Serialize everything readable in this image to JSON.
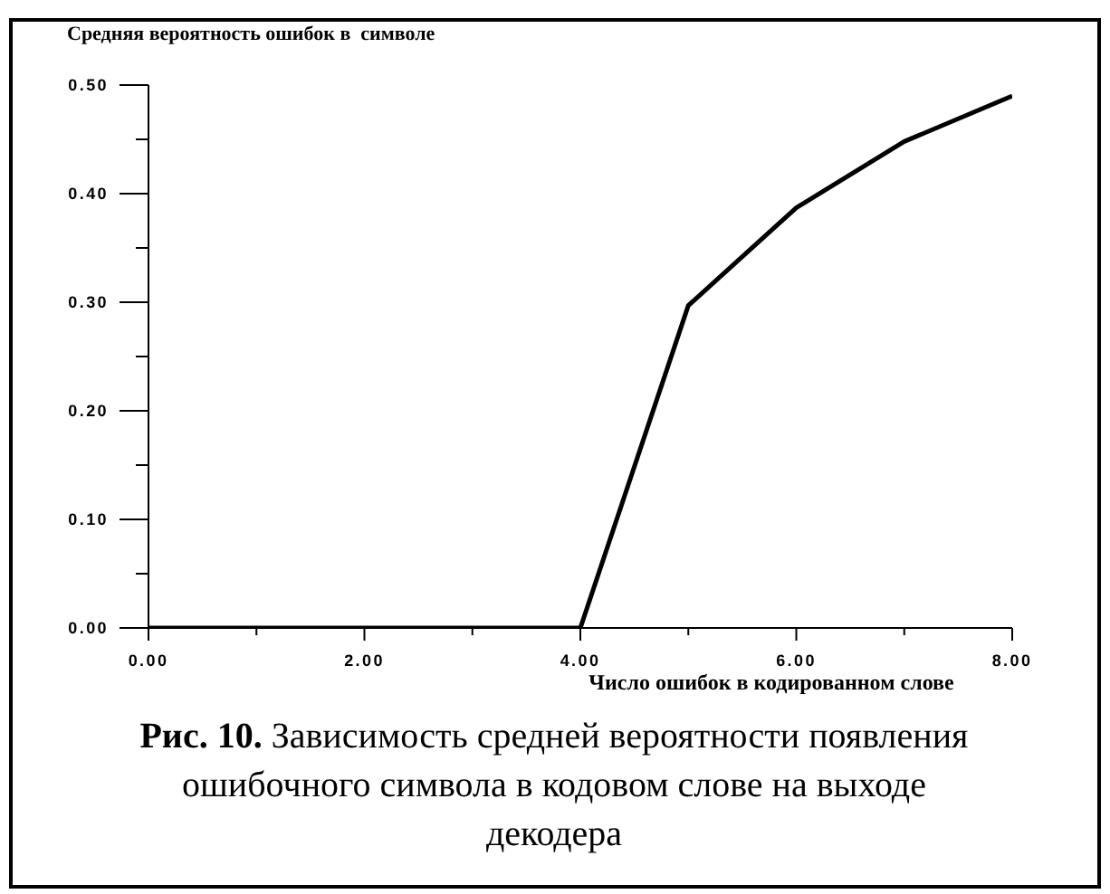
{
  "chart_data": {
    "type": "line",
    "xlabel": "Число ошибок в кодированном слове",
    "ylabel": "Средняя вероятность ошибок в  символе",
    "annotations": [
      "Рис. 10.",
      "Зависимость средней вероятности появления ошибочного символа в кодовом слове на выходе декодера"
    ],
    "x": [
      0,
      1,
      2,
      3,
      4,
      5,
      6,
      7,
      8
    ],
    "series": [
      {
        "color": "#000000",
        "values": [
          0,
          0,
          0,
          0,
          0,
          0.297,
          0.387,
          0.448,
          0.49
        ]
      }
    ],
    "xlim": [
      0,
      8
    ],
    "xticks": [
      {
        "value": 0,
        "label": "0.00"
      },
      {
        "value": 1,
        "label": null
      },
      {
        "value": 2,
        "label": "2.00"
      },
      {
        "value": 3,
        "label": null
      },
      {
        "value": 4,
        "label": "4.00"
      },
      {
        "value": 5,
        "label": null
      },
      {
        "value": 6,
        "label": "6.00"
      },
      {
        "value": 7,
        "label": null
      },
      {
        "value": 8,
        "label": "8.00"
      }
    ],
    "ylim": [
      0,
      0.5
    ],
    "yticks": [
      {
        "value": 0,
        "label": "0.00"
      },
      {
        "value": 0.05,
        "label": null
      },
      {
        "value": 0.1,
        "label": "0.10"
      },
      {
        "value": 0.15,
        "label": null
      },
      {
        "value": 0.2,
        "label": "0.20"
      },
      {
        "value": 0.25,
        "label": null
      },
      {
        "value": 0.3,
        "label": "0.30"
      },
      {
        "value": 0.35,
        "label": null
      },
      {
        "value": 0.4,
        "label": "0.40"
      },
      {
        "value": 0.45,
        "label": null
      },
      {
        "value": 0.5,
        "label": "0.50"
      }
    ],
    "grid": false,
    "legend": false,
    "marker": "none",
    "line_style": "solid"
  }
}
